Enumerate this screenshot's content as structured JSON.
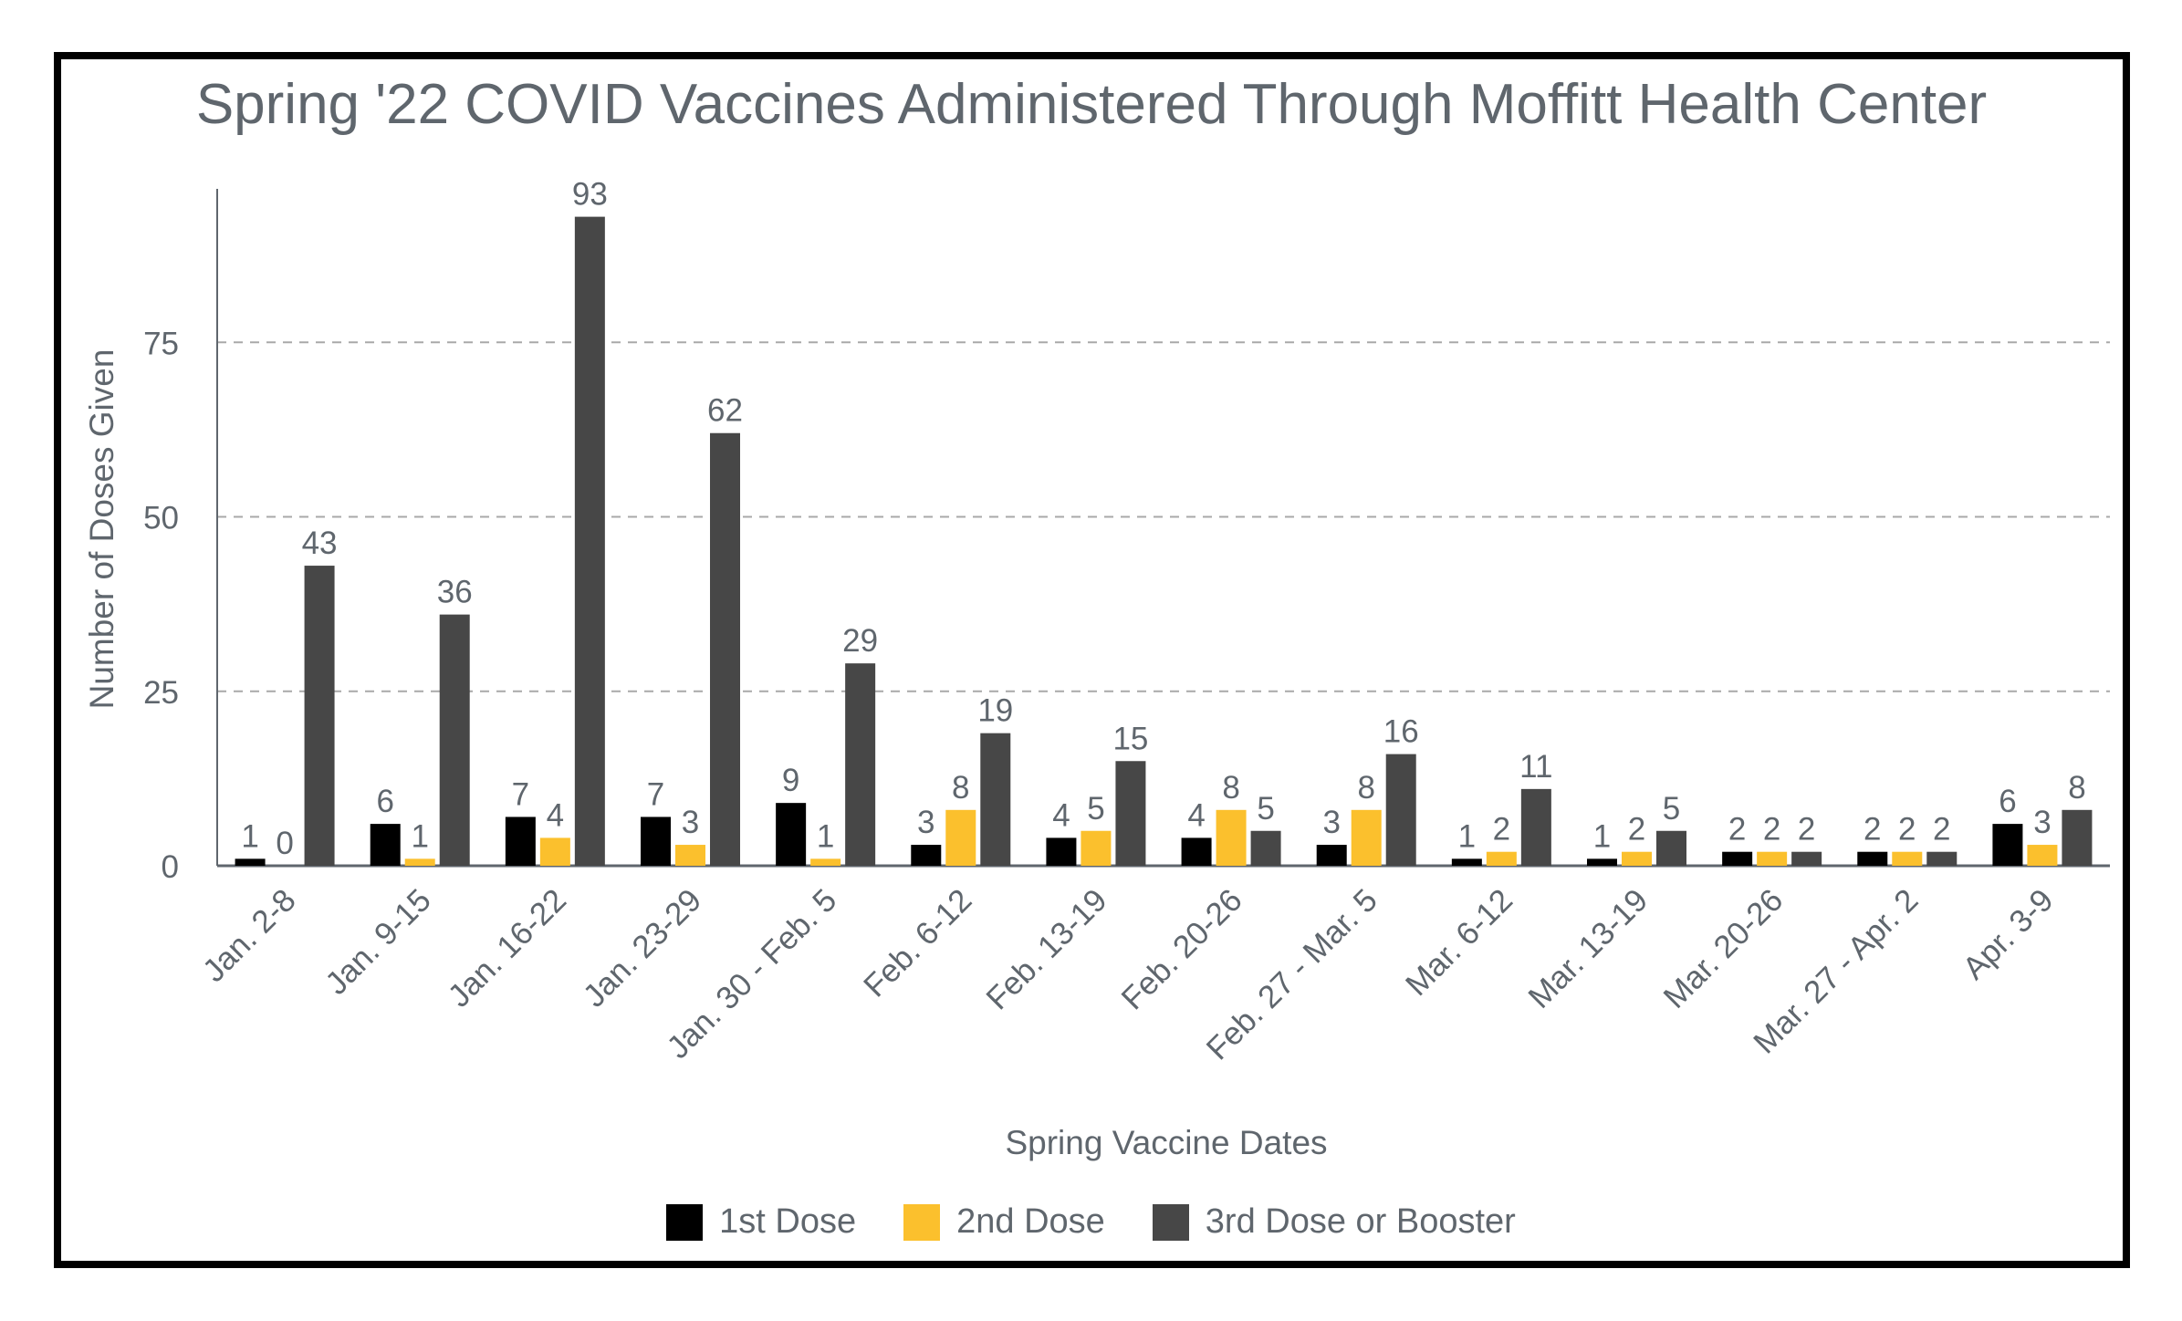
{
  "chart_data": {
    "type": "bar",
    "title": "Spring '22 COVID Vaccines Administered Through Moffitt Health Center",
    "xlabel": "Spring Vaccine Dates",
    "ylabel": "Number of Doses Given",
    "ylim": [
      0,
      97
    ],
    "yticks": [
      0,
      25,
      50,
      75
    ],
    "grid": true,
    "legend_position": "bottom",
    "categories": [
      "Jan. 2-8",
      "Jan. 9-15",
      "Jan. 16-22",
      "Jan. 23-29",
      "Jan. 30 - Feb. 5",
      "Feb. 6-12",
      "Feb. 13-19",
      "Feb. 20-26",
      "Feb. 27 - Mar. 5",
      "Mar. 6-12",
      "Mar. 13-19",
      "Mar. 20-26",
      "Mar. 27 - Apr. 2",
      "Apr. 3-9"
    ],
    "series": [
      {
        "name": "1st Dose",
        "color": "#000000",
        "values": [
          1,
          6,
          7,
          7,
          9,
          3,
          4,
          4,
          3,
          1,
          1,
          2,
          2,
          6
        ]
      },
      {
        "name": "2nd Dose",
        "color": "#fbc02d",
        "values": [
          0,
          1,
          4,
          3,
          1,
          8,
          5,
          8,
          8,
          2,
          2,
          2,
          2,
          3
        ]
      },
      {
        "name": "3rd Dose or Booster",
        "color": "#474747",
        "values": [
          43,
          36,
          93,
          62,
          29,
          19,
          15,
          5,
          16,
          11,
          5,
          2,
          2,
          8
        ]
      }
    ]
  }
}
